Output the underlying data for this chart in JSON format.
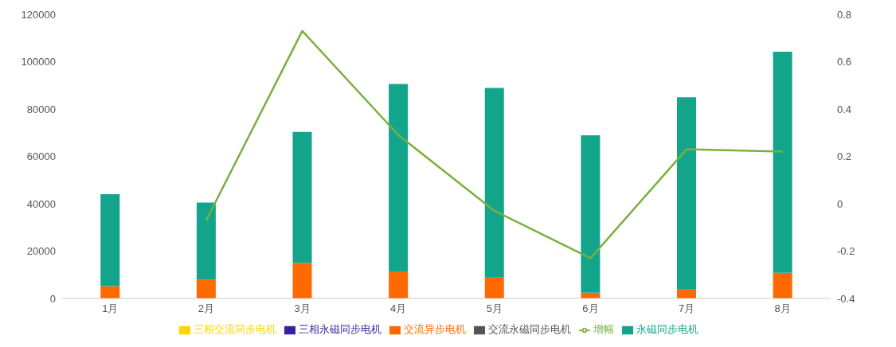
{
  "chart_data": {
    "type": "bar",
    "stacked": true,
    "categories": [
      "1月",
      "2月",
      "3月",
      "4月",
      "5月",
      "6月",
      "7月",
      "8月"
    ],
    "series": [
      {
        "name": "交流异步电机",
        "color": "#ff6a00",
        "values": [
          5200,
          8000,
          15000,
          11200,
          9100,
          2400,
          3800,
          10800
        ]
      },
      {
        "name": "交流永磁同步电机",
        "color": "#555555",
        "values": [
          0,
          0,
          0,
          0,
          0,
          0,
          0,
          0
        ]
      },
      {
        "name": "三相交流同步电机",
        "color": "#ffd400",
        "values": [
          0,
          0,
          0,
          0,
          0,
          0,
          0,
          0
        ]
      },
      {
        "name": "三相永磁同步电机",
        "color": "#3a1fa0",
        "values": [
          0,
          0,
          0,
          0,
          0,
          0,
          0,
          0
        ]
      },
      {
        "name": "永磁同步电机",
        "color": "#12a58c",
        "values": [
          38800,
          32500,
          55300,
          79400,
          79800,
          66500,
          81200,
          93400
        ]
      },
      {
        "name": "增幅",
        "type": "line",
        "axis": "y2",
        "color": "#7ab040",
        "values": [
          null,
          -0.07,
          0.73,
          0.29,
          -0.03,
          -0.23,
          0.23,
          0.22
        ]
      }
    ],
    "ylim": [
      0,
      120000
    ],
    "yticks": [
      0,
      20000,
      40000,
      60000,
      80000,
      100000,
      120000
    ],
    "y2lim": [
      -0.4,
      0.8
    ],
    "y2ticks": [
      -0.4,
      -0.2,
      0,
      0.2,
      0.4,
      0.6,
      0.8
    ],
    "grid": false,
    "legend": "bottom",
    "marker": "none",
    "line_style": "solid"
  }
}
